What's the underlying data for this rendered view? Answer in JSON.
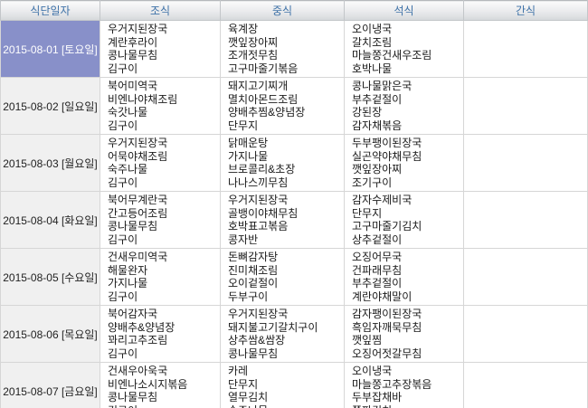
{
  "table": {
    "columns": [
      "식단일자",
      "조식",
      "중식",
      "석식",
      "간식"
    ],
    "rows": [
      {
        "date": "2015-08-01 [토요일]",
        "selected": true,
        "breakfast": [
          "우거지된장국",
          "계란후라이",
          "콩나물무침",
          "김구이"
        ],
        "lunch": [
          "육계장",
          "깻잎장아찌",
          "조개젓무침",
          "고구마줄기볶음"
        ],
        "dinner": [
          "오이냉국",
          "갈치조림",
          "마늘쫑건새우조림",
          "호박나물"
        ],
        "snack": []
      },
      {
        "date": "2015-08-02 [일요일]",
        "selected": false,
        "breakfast": [
          "북어미역국",
          "비엔나야채조림",
          "숙갓나물",
          "김구이"
        ],
        "lunch": [
          "돼지고기찌개",
          "멸치아몬드조림",
          "양배추찜&양념장",
          "단무지"
        ],
        "dinner": [
          "콩나물맑은국",
          "부추겉절이",
          "강된장",
          "감자채볶음"
        ],
        "snack": []
      },
      {
        "date": "2015-08-03 [월요일]",
        "selected": false,
        "breakfast": [
          "우거지된장국",
          "어묵야채조림",
          "숙주나물",
          "김구이"
        ],
        "lunch": [
          "닭매운탕",
          "가지나물",
          "브로콜리&초장",
          "나나스끼무침"
        ],
        "dinner": [
          "두부팽이된장국",
          "실곤약야채무침",
          "깻잎장아찌",
          "조기구이"
        ],
        "snack": []
      },
      {
        "date": "2015-08-04 [화요일]",
        "selected": false,
        "breakfast": [
          "북어무계란국",
          "간고등어조림",
          "콩나물무침",
          "김구이"
        ],
        "lunch": [
          "우거지된장국",
          "골뱅이야채무침",
          "호박표고볶음",
          "콩자반"
        ],
        "dinner": [
          "감자수제비국",
          "단무지",
          "고구마줄기김치",
          "상추겉절이"
        ],
        "snack": []
      },
      {
        "date": "2015-08-05 [수요일]",
        "selected": false,
        "breakfast": [
          "건새우미역국",
          "해물완자",
          "가지나물",
          "김구이"
        ],
        "lunch": [
          "돈뼈감자탕",
          "진미채조림",
          "오이겉절이",
          "두부구이"
        ],
        "dinner": [
          "오징어무국",
          "건파래무침",
          "부추겉절이",
          "계란야채말이"
        ],
        "snack": []
      },
      {
        "date": "2015-08-06 [목요일]",
        "selected": false,
        "breakfast": [
          "북어감자국",
          "양배추&양념장",
          "꽈리고추조림",
          "김구이"
        ],
        "lunch": [
          "우거지된장국",
          "돼지불고기갈치구이",
          "상추쌈&쌈장",
          "콩나물무침"
        ],
        "dinner": [
          "감자팽이된장국",
          "흑임자깨묵무침",
          "깻잎찜",
          "오징어젓갈무침"
        ],
        "snack": []
      },
      {
        "date": "2015-08-07 [금요일]",
        "selected": false,
        "breakfast": [
          "건새우아욱국",
          "비엔나소시지볶음",
          "콩나물무침",
          "김구이"
        ],
        "lunch": [
          "카레",
          "단무지",
          "열무김치",
          "숙주나물"
        ],
        "dinner": [
          "오이냉국",
          "마늘쫑고추장볶음",
          "두부잡채바",
          "쪽파김치"
        ],
        "snack": []
      }
    ]
  },
  "colors": {
    "header_text": "#3e72a8",
    "header_gradient_top": "#fbfbfb",
    "header_gradient_bottom": "#d5d8db",
    "selected_date_bg": "#8890c9",
    "selected_date_text": "#ffffff",
    "date_cell_bg": "#f0f0f0",
    "cell_border": "#d6d6d6"
  }
}
